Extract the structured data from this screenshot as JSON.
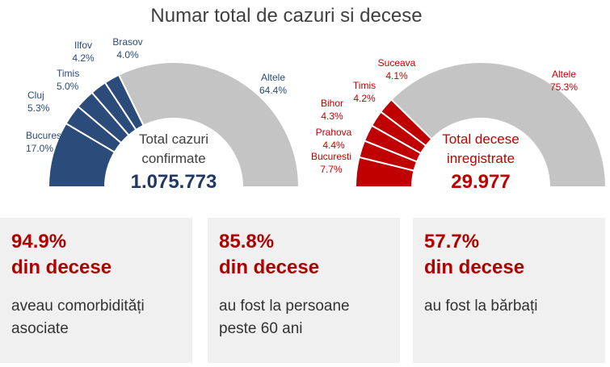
{
  "title": "Numar total de cazuri si decese",
  "chart_data": [
    {
      "type": "pie",
      "style": "half-donut",
      "center_label": [
        "Total cazuri",
        "confirmate"
      ],
      "center_value": "1.075.773",
      "color_main": "#2b4b7a",
      "color_rest": "#c4c4c4",
      "categories": [
        "Bucuresti",
        "Cluj",
        "Timis",
        "Ilfov",
        "Brasov",
        "Altele"
      ],
      "values": [
        17.0,
        5.3,
        5.0,
        4.2,
        4.0,
        64.4
      ],
      "labels": [
        "17.0%",
        "5.3%",
        "5.0%",
        "4.2%",
        "4.0%",
        "64.4%"
      ]
    },
    {
      "type": "pie",
      "style": "half-donut",
      "center_label": [
        "Total decese",
        "inregistrate"
      ],
      "center_value": "29.977",
      "color_main": "#c00000",
      "color_rest": "#c4c4c4",
      "categories": [
        "Bucuresti",
        "Prahova",
        "Bihor",
        "Timis",
        "Suceava",
        "Altele"
      ],
      "values": [
        7.7,
        4.4,
        4.3,
        4.2,
        4.1,
        75.3
      ],
      "labels": [
        "7.7%",
        "4.4%",
        "4.3%",
        "4.2%",
        "4.1%",
        "75.3%"
      ]
    }
  ],
  "cards": [
    {
      "pct": "94.9%",
      "sub": "din decese",
      "desc": [
        "aveau comorbidități",
        "asociate"
      ]
    },
    {
      "pct": "85.8%",
      "sub": "din decese",
      "desc": [
        "au fost la persoane",
        "peste 60 ani"
      ]
    },
    {
      "pct": "57.7%",
      "sub": "din decese",
      "desc": [
        "au fost la bărbați"
      ]
    }
  ]
}
